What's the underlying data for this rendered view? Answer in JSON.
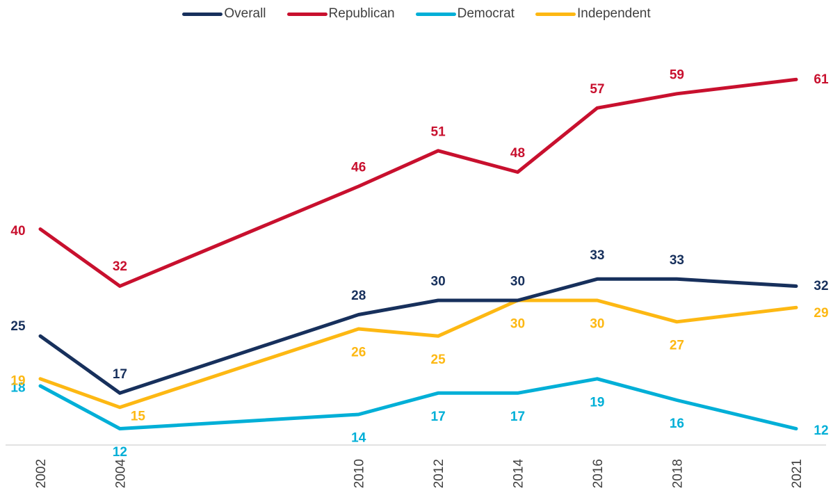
{
  "chart_data": {
    "type": "line",
    "title": "",
    "xlabel": "",
    "ylabel": "",
    "x": [
      "2002",
      "2004",
      "2010",
      "2012",
      "2014",
      "2016",
      "2018",
      "2021"
    ],
    "ylim": [
      0,
      70
    ],
    "grid": false,
    "legend_position": "top",
    "series": [
      {
        "name": "Overall",
        "color": "#17305c",
        "values": [
          25,
          17,
          28,
          30,
          30,
          33,
          33,
          32
        ]
      },
      {
        "name": "Republican",
        "color": "#c8102e",
        "values": [
          40,
          32,
          46,
          51,
          48,
          57,
          59,
          61
        ]
      },
      {
        "name": "Democrat",
        "color": "#00afd7",
        "values": [
          18,
          12,
          14,
          17,
          17,
          19,
          16,
          12
        ]
      },
      {
        "name": "Independent",
        "color": "#fdb813",
        "values": [
          19,
          15,
          26,
          25,
          30,
          30,
          27,
          29
        ]
      }
    ]
  }
}
